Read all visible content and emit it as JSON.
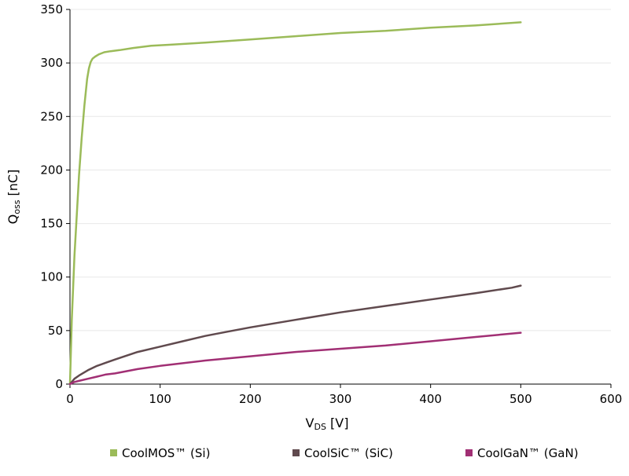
{
  "chart_data": {
    "type": "line",
    "xlabel": {
      "main": "V",
      "sub": "DS",
      "suffix": " [V]"
    },
    "ylabel": {
      "main": "Q",
      "sub": "oss",
      "suffix": " [nC]"
    },
    "xlim": [
      0,
      600
    ],
    "ylim": [
      0,
      350
    ],
    "xticks": [
      0,
      100,
      200,
      300,
      400,
      500,
      600
    ],
    "yticks": [
      0,
      50,
      100,
      150,
      200,
      250,
      300,
      350
    ],
    "grid": "horizontal",
    "legend_position": "bottom",
    "series": [
      {
        "name": "CoolMOS™ (Si)",
        "color": "#9bbb59",
        "x": [
          0,
          2,
          5,
          8,
          10,
          13,
          16,
          19,
          21,
          23,
          25,
          28,
          32,
          38,
          45,
          55,
          70,
          90,
          110,
          150,
          200,
          250,
          300,
          350,
          400,
          450,
          500
        ],
        "y": [
          0,
          60,
          120,
          165,
          195,
          230,
          260,
          285,
          295,
          301,
          304,
          306,
          308,
          310,
          311,
          312,
          314,
          316,
          317,
          319,
          322,
          325,
          328,
          330,
          333,
          335,
          338
        ]
      },
      {
        "name": "CoolSiC™ (SiC)",
        "color": "#604a4e",
        "x": [
          0,
          5,
          10,
          20,
          30,
          40,
          50,
          75,
          100,
          125,
          150,
          175,
          200,
          250,
          300,
          350,
          400,
          450,
          490,
          500
        ],
        "y": [
          0,
          5,
          8,
          13,
          17,
          20,
          23,
          30,
          35,
          40,
          45,
          49,
          53,
          60,
          67,
          73,
          79,
          85,
          90,
          92
        ]
      },
      {
        "name": "CoolGaN™ (GaN)",
        "color": "#a12f74",
        "x": [
          0,
          5,
          10,
          20,
          30,
          40,
          50,
          75,
          100,
          150,
          200,
          250,
          300,
          350,
          400,
          450,
          500
        ],
        "y": [
          0,
          2,
          3,
          5,
          7,
          9,
          10,
          14,
          17,
          22,
          26,
          30,
          33,
          36,
          40,
          44,
          48
        ]
      }
    ]
  }
}
